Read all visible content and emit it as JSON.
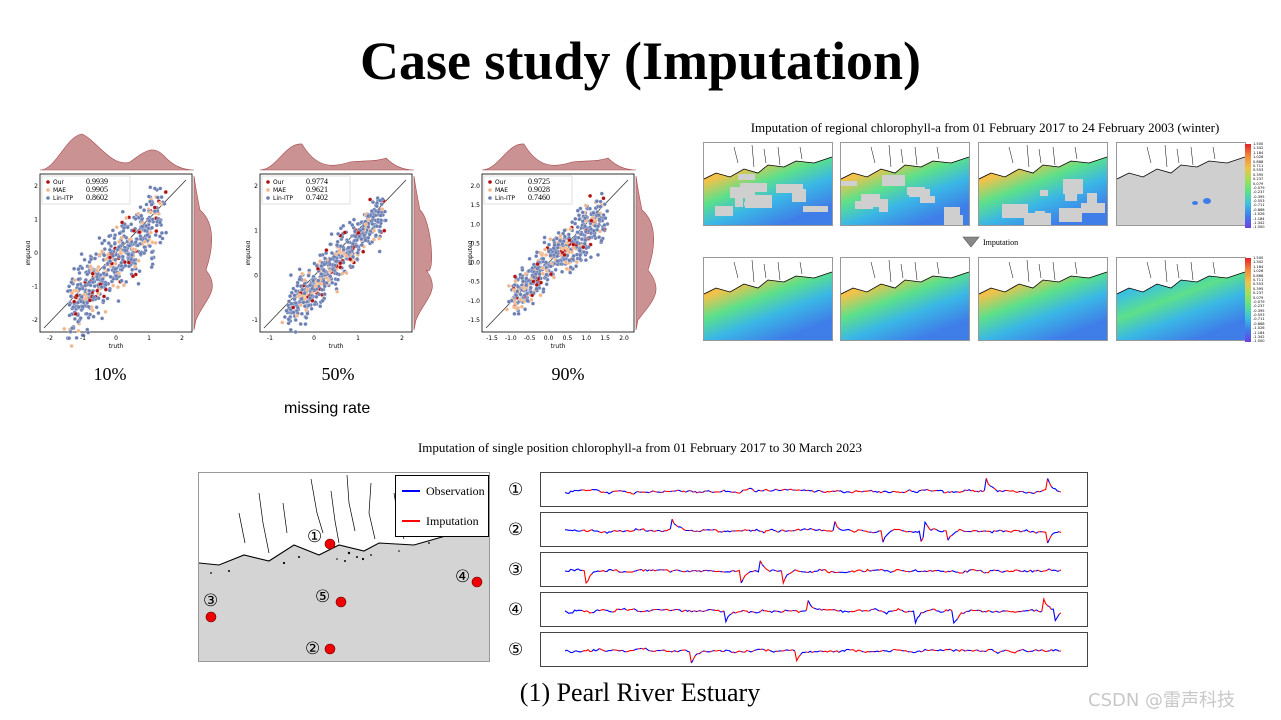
{
  "title": "Case study (Imputation)",
  "scatter_panels": [
    {
      "percent": "10%",
      "legend_labels": [
        "Our",
        "MAE",
        "Lin-ITP"
      ],
      "scores": [
        "0.9939",
        "0.9905",
        "0.8602"
      ],
      "xlabel": "truth",
      "ylabel": "imputed",
      "xticks": [
        "-2",
        "-1",
        "0",
        "1",
        "2"
      ],
      "yticks": [
        "2",
        "1",
        "0",
        "-1",
        "-2"
      ]
    },
    {
      "percent": "50%",
      "legend_labels": [
        "Our",
        "MAE",
        "Lin-ITP"
      ],
      "scores": [
        "0.9774",
        "0.9621",
        "0.7402"
      ],
      "xlabel": "truth",
      "ylabel": "imputed",
      "xticks": [
        "-1",
        "0",
        "1",
        "2"
      ],
      "yticks": [
        "2",
        "1",
        "0",
        "-1"
      ]
    },
    {
      "percent": "90%",
      "legend_labels": [
        "Our",
        "MAE",
        "Lin-ITP"
      ],
      "scores": [
        "0.9725",
        "0.9028",
        "0.7460"
      ],
      "xlabel": "truth",
      "ylabel": "imputed",
      "xticks": [
        "-1.5",
        "-1.0",
        "-0.5",
        "0.0",
        "0.5",
        "1.0",
        "1.5",
        "2.0"
      ],
      "yticks": [
        "2.0",
        "1.5",
        "1.0",
        "0.5",
        "0.0",
        "-0.5",
        "-1.0",
        "-1.5"
      ]
    }
  ],
  "missing_rate_label": "missing rate",
  "regional": {
    "title": "Imputation of regional chlorophyll-a from 01 February 2017 to 24 February 2003 (winter)",
    "arrow_label": "Imputation",
    "colorbar_ticks": [
      "1.500",
      "1.342",
      "1.184",
      "1.026",
      "0.868",
      "0.711",
      "0.553",
      "0.395",
      "0.237",
      "0.079",
      "-0.079",
      "-0.237",
      "-0.395",
      "-0.553",
      "-0.711",
      "-0.868",
      "-1.026",
      "-1.184",
      "-1.342",
      "-1.500"
    ]
  },
  "single": {
    "title": "Imputation of single position chlorophyll-a from 01 February 2017 to 30 March 2023",
    "legend": {
      "observation": "Observation",
      "imputation": "Imputation"
    },
    "markers": [
      "①",
      "②",
      "③",
      "④",
      "⑤"
    ],
    "colors": {
      "observation": "#0000ff",
      "imputation": "#ff0000"
    }
  },
  "caption": "(1) Pearl River Estuary",
  "watermark": "CSDN @雷声科技",
  "colors": {
    "our": "#b01010",
    "mae": "#f2b68a",
    "lin": "#6b7fb3",
    "kde": "#a8494b"
  }
}
